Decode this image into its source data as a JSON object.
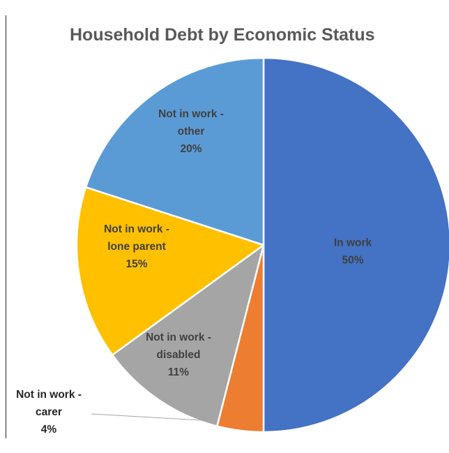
{
  "chart_data": {
    "type": "pie",
    "title": "Household Debt by Economic Status",
    "slices": [
      {
        "label": [
          "In work"
        ],
        "value": 50,
        "value_label": "50%",
        "color": "#4472C4"
      },
      {
        "label": [
          "Not in work -",
          "carer"
        ],
        "value": 4,
        "value_label": "4%",
        "color": "#ED7D31"
      },
      {
        "label": [
          "Not in work -",
          "disabled"
        ],
        "value": 11,
        "value_label": "11%",
        "color": "#A5A5A5"
      },
      {
        "label": [
          "Not in work -",
          "lone parent"
        ],
        "value": 15,
        "value_label": "15%",
        "color": "#FFC000"
      },
      {
        "label": [
          "Not in work -",
          "other"
        ],
        "value": 20,
        "value_label": "20%",
        "color": "#5B9BD5"
      }
    ],
    "start_angle_deg": 0,
    "direction": "clockwise",
    "legend": "none",
    "data_labels": "category-and-percent"
  }
}
